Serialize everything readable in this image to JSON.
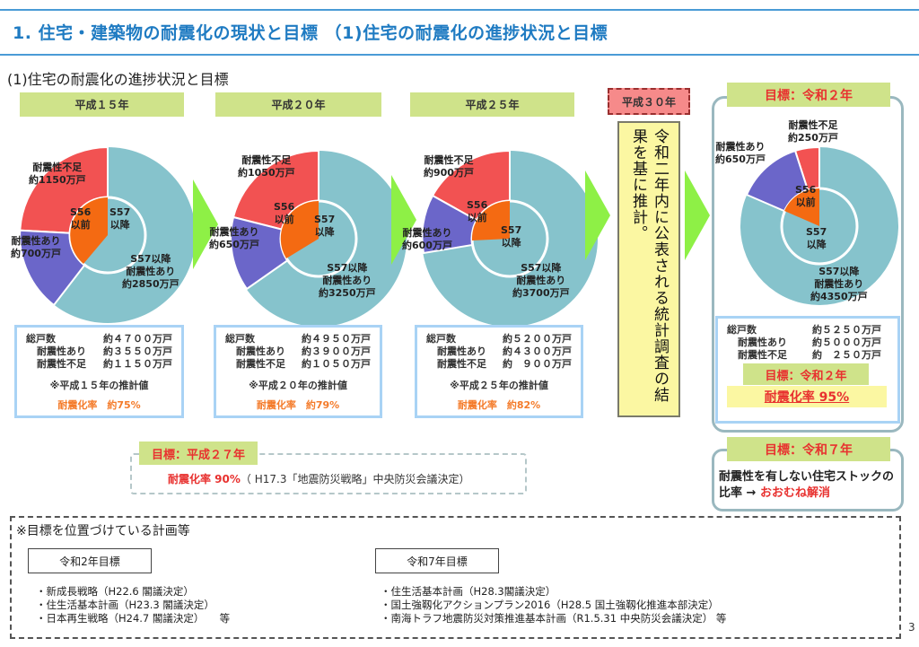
{
  "header": {
    "title": "1. 住宅・建築物の耐震化の現状と目標 （1)住宅の耐震化の進捗状況と目標",
    "subtitle": "(1)住宅の耐震化の進捗状況と目標"
  },
  "colors": {
    "title_blue": "#1f7bc2",
    "insufficient_red": "#f25252",
    "sufficient_purple": "#6b66c9",
    "pre_s56_orange": "#f46a12",
    "post_s57_teal": "#86c3cc",
    "year_tag_green": "#cfe38a",
    "arrow_green": "#8ef046",
    "target_red": "#e8312f",
    "rate_orange": "#f47b2a"
  },
  "periods": [
    {
      "year": "平成１５年",
      "inner_pre": "S56\n以前",
      "inner_post": "S57\n以降",
      "label_insufficient": "耐震性不足\n約1150万戸",
      "label_sufficient": "耐震性あり\n約700万戸",
      "label_post": "S57以降\n耐震性あり\n約2850万戸",
      "stats": {
        "total_label": "総戸数",
        "total_value": "約４７００万戸",
        "ok_label": "耐震性あり",
        "ok_value": "約３５５０万戸",
        "ng_label": "耐震性不足",
        "ng_value": "約１１５０万戸",
        "note": "※平成１５年の推計値",
        "rate": "耐震化率　約75%"
      }
    },
    {
      "year": "平成２０年",
      "inner_pre": "S56\n以前",
      "inner_post": "S57\n以降",
      "label_insufficient": "耐震性不足\n約1050万戸",
      "label_sufficient": "耐震性あり\n約650万戸",
      "label_post": "S57以降\n耐震性あり\n約3250万戸",
      "stats": {
        "total_label": "総戸数",
        "total_value": "約４９５０万戸",
        "ok_label": "耐震性あり",
        "ok_value": "約３９００万戸",
        "ng_label": "耐震性不足",
        "ng_value": "約１０５０万戸",
        "note": "※平成２０年の推計値",
        "rate": "耐震化率　約79%"
      }
    },
    {
      "year": "平成２５年",
      "inner_pre": "S56\n以前",
      "inner_post": "S57\n以降",
      "label_insufficient": "耐震性不足\n約900万戸",
      "label_sufficient": "耐震性あり\n約600万戸",
      "label_post": "S57以降\n耐震性あり\n約3700万戸",
      "stats": {
        "total_label": "総戸数",
        "total_value": "約５２００万戸",
        "ok_label": "耐震性あり",
        "ok_value": "約４３００万戸",
        "ng_label": "耐震性不足",
        "ng_value": "約　９００万戸",
        "note": "※平成２５年の推計値",
        "rate": "耐震化率　約82%"
      }
    }
  ],
  "h30": {
    "tag": "平成３０年",
    "text": "令和二年内に公表される統計調査の結果を基に推計。"
  },
  "r2_target": {
    "tag": "目標：令和２年",
    "inner_pre": "S56\n以前",
    "inner_post": "S57\n以降",
    "label_insufficient": "耐震性不足\n約250万戸",
    "label_sufficient": "耐震性あり\n約650万戸",
    "label_post": "S57以降\n耐震性あり\n約4350万戸",
    "stats": {
      "total_label": "総戸数",
      "total_value": "約５２５０万戸",
      "ok_label": "耐震性あり",
      "ok_value": "約５０００万戸",
      "ng_label": "耐震性不足",
      "ng_value": "約　２５０万戸"
    },
    "goal_inner": "目標：令和２年",
    "rate": "耐震化率 95%"
  },
  "r7_target": {
    "tag": "目標：令和７年",
    "text": "耐震性を有しない住宅ストックの比率 → ",
    "highlight": "おおむね解消"
  },
  "h27_target": {
    "tag": "目標：平成２７年",
    "rate": "耐震化率 90%",
    "note": "（ H17.3「地震防災戦略」中央防災会議決定）"
  },
  "plans": {
    "title": "※目標を位置づけている計画等",
    "r2": {
      "head": "令和2年目標",
      "items": [
        "・新成長戦略（H22.6 閣議決定）",
        "・住生活基本計画（H23.3 閣議決定）",
        "・日本再生戦略（H24.7 閣議決定）　　等"
      ]
    },
    "r7": {
      "head": "令和7年目標",
      "items": [
        "・住生活基本計画（H28.3閣議決定）",
        "・国土強靱化アクションプラン2016（H28.5 国土強靱化推進本部決定）",
        "・南海トラフ地震防災対策推進基本計画（R1.5.31 中央防災会議決定） 等"
      ]
    }
  },
  "page_number": "3",
  "chart_data": [
    {
      "type": "pie",
      "title": "平成１５年",
      "categories": [
        "S56以前 耐震性不足",
        "S56以前 耐震性あり",
        "S57以降 耐震性あり"
      ],
      "values": [
        1150,
        700,
        2850
      ],
      "unit": "万戸",
      "total": 4700,
      "rate": "約75%"
    },
    {
      "type": "pie",
      "title": "平成２０年",
      "categories": [
        "S56以前 耐震性不足",
        "S56以前 耐震性あり",
        "S57以降 耐震性あり"
      ],
      "values": [
        1050,
        650,
        3250
      ],
      "unit": "万戸",
      "total": 4950,
      "rate": "約79%"
    },
    {
      "type": "pie",
      "title": "平成２５年",
      "categories": [
        "S56以前 耐震性不足",
        "S56以前 耐震性あり",
        "S57以降 耐震性あり"
      ],
      "values": [
        900,
        600,
        3700
      ],
      "unit": "万戸",
      "total": 5200,
      "rate": "約82%"
    },
    {
      "type": "pie",
      "title": "目標：令和２年",
      "categories": [
        "S56以前 耐震性不足",
        "S56以前 耐震性あり",
        "S57以降 耐震性あり"
      ],
      "values": [
        250,
        650,
        4350
      ],
      "unit": "万戸",
      "total": 5250,
      "rate": "95%"
    }
  ]
}
